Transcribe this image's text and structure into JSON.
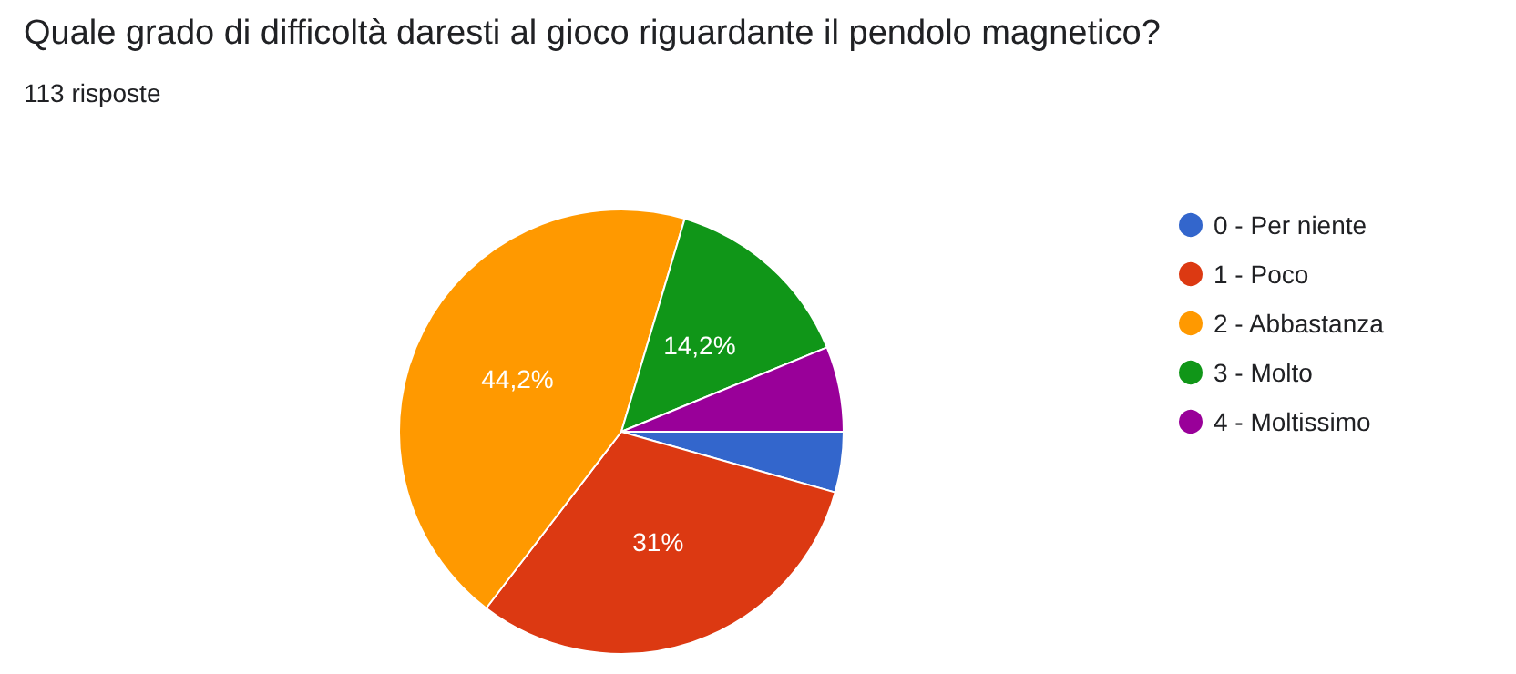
{
  "chart_data": {
    "type": "pie",
    "title": "Quale grado di difficoltà daresti al gioco riguardante il pendolo magnetico?",
    "subtitle": "113 risposte",
    "categories": [
      "0 - Per niente",
      "1 - Poco",
      "2 - Abbastanza",
      "3 - Molto",
      "4 - Moltissimo"
    ],
    "values": [
      4.4,
      31,
      44.2,
      14.2,
      6.2
    ],
    "colors": [
      "#3366cc",
      "#dc3912",
      "#ff9900",
      "#109618",
      "#990099"
    ],
    "value_labels": [
      null,
      "31%",
      "44,2%",
      "14,2%",
      null
    ],
    "legend": "right"
  }
}
